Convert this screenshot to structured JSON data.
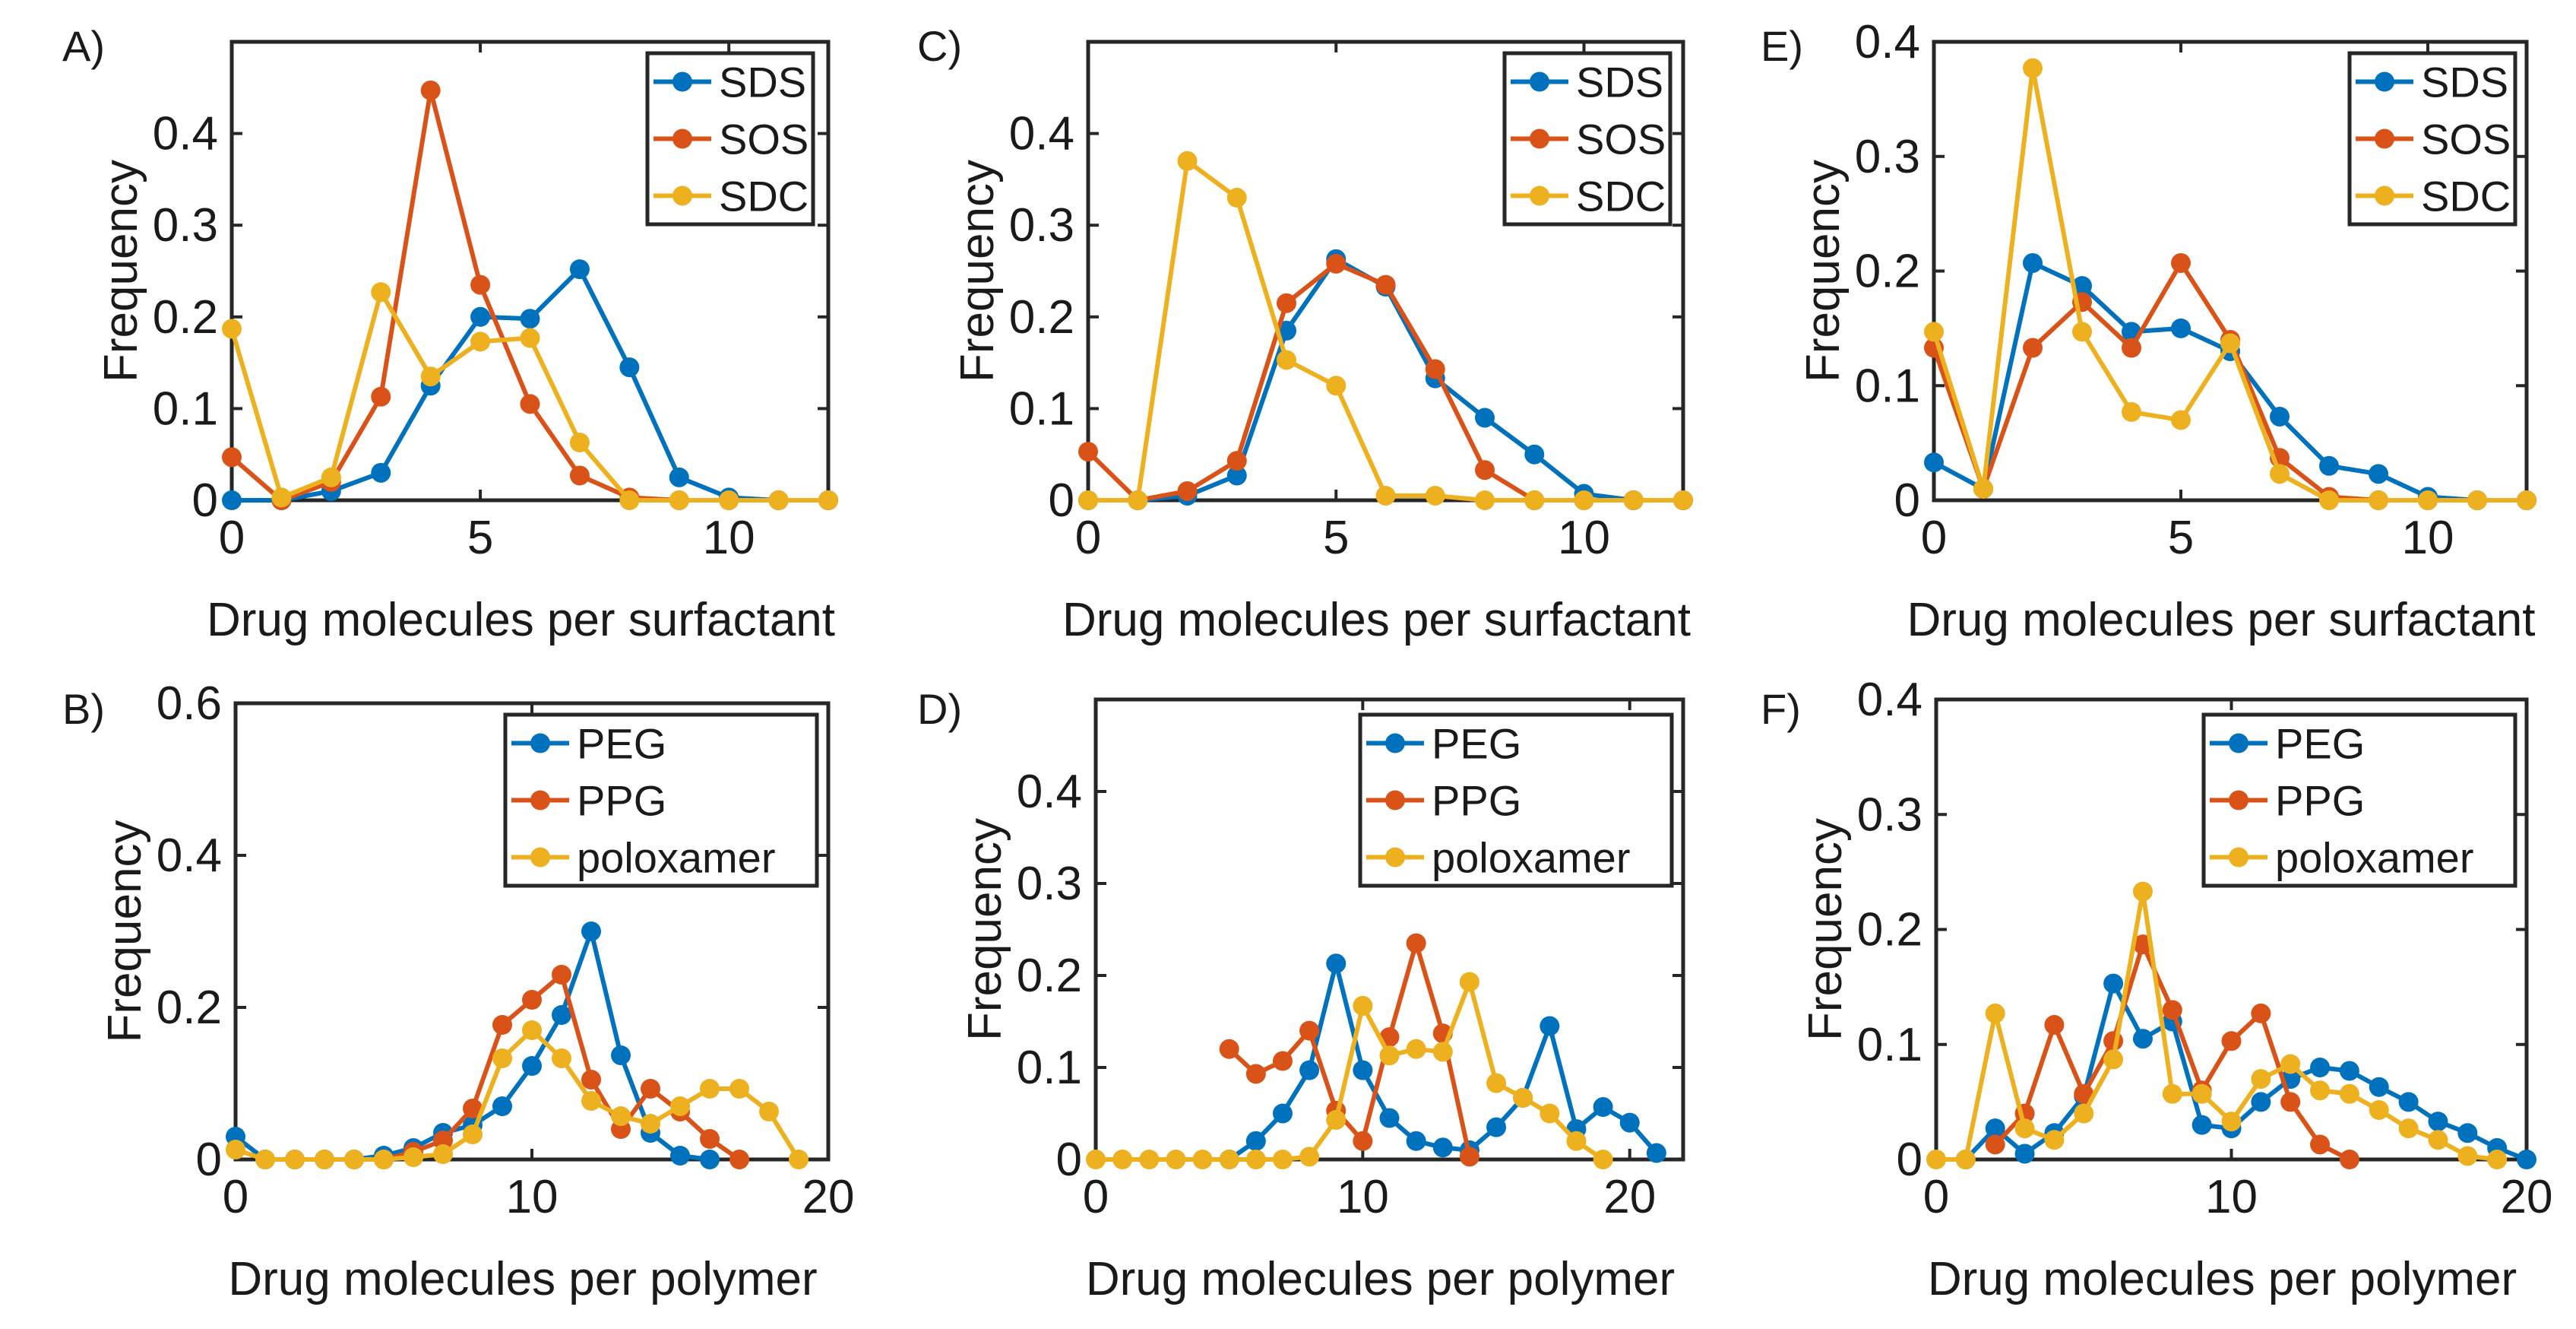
{
  "figure": {
    "colors": {
      "blue": "#0072BD",
      "orange": "#D95319",
      "yellow": "#EDB120"
    }
  },
  "chart_data": [
    {
      "panel": "A)",
      "type": "line",
      "xlabel": "Drug molecules per surfactant",
      "ylabel": "Frequency",
      "xlim": [
        0,
        12
      ],
      "ylim": [
        0,
        0.5
      ],
      "xticks": [
        0,
        5,
        10
      ],
      "yticks": [
        0,
        0.1,
        0.2,
        0.3,
        0.4
      ],
      "legend": "top-right",
      "x": [
        0,
        1,
        2,
        3,
        4,
        5,
        6,
        7,
        8,
        9,
        10,
        11,
        12
      ],
      "series": [
        {
          "name": "SDS",
          "color": "#0072BD",
          "values": [
            0,
            0,
            0.01,
            0.03,
            0.125,
            0.2,
            0.198,
            0.252,
            0.145,
            0.025,
            0.003,
            0,
            0
          ]
        },
        {
          "name": "SOS",
          "color": "#D95319",
          "values": [
            0.047,
            0,
            0.02,
            0.113,
            0.447,
            0.235,
            0.105,
            0.027,
            0.003,
            0,
            0,
            0,
            0
          ]
        },
        {
          "name": "SDC",
          "color": "#EDB120",
          "values": [
            0.187,
            0.003,
            0.025,
            0.227,
            0.135,
            0.173,
            0.177,
            0.063,
            0,
            0,
            0,
            0,
            0
          ]
        }
      ]
    },
    {
      "panel": "B)",
      "type": "line",
      "xlabel": "Drug molecules per polymer",
      "ylabel": "Frequency",
      "xlim": [
        0,
        20
      ],
      "ylim": [
        0,
        0.6
      ],
      "xticks": [
        0,
        10,
        20
      ],
      "yticks": [
        0,
        0.2,
        0.4,
        0.6
      ],
      "legend": "top-right",
      "x": [
        0,
        1,
        2,
        3,
        4,
        5,
        6,
        7,
        8,
        9,
        10,
        11,
        12,
        13,
        14,
        15,
        16,
        17,
        18,
        19
      ],
      "series": [
        {
          "name": "PEG",
          "color": "#0072BD",
          "values": [
            0.03,
            0,
            0,
            0,
            0,
            0.005,
            0.015,
            0.035,
            0.045,
            0.07,
            0.123,
            0.19,
            0.3,
            0.137,
            0.035,
            0.005,
            0,
            null,
            null,
            null
          ]
        },
        {
          "name": "PPG",
          "color": "#D95319",
          "values": [
            null,
            null,
            null,
            null,
            null,
            0,
            0.01,
            0.025,
            0.067,
            0.177,
            0.21,
            0.243,
            0.105,
            0.04,
            0.093,
            0.063,
            0.027,
            0,
            null,
            null
          ]
        },
        {
          "name": "poloxamer",
          "color": "#EDB120",
          "values": [
            0.013,
            0,
            0,
            0,
            0,
            0,
            0.003,
            0.007,
            0.033,
            0.133,
            0.17,
            0.133,
            0.077,
            0.057,
            0.047,
            0.07,
            0.093,
            0.093,
            0.063,
            0
          ]
        }
      ]
    },
    {
      "panel": "C)",
      "type": "line",
      "xlabel": "Drug molecules per surfactant",
      "ylabel": "Frequency",
      "xlim": [
        0,
        12
      ],
      "ylim": [
        0,
        0.5
      ],
      "xticks": [
        0,
        5,
        10
      ],
      "yticks": [
        0,
        0.1,
        0.2,
        0.3,
        0.4
      ],
      "legend": "top-right",
      "x": [
        0,
        1,
        2,
        3,
        4,
        5,
        6,
        7,
        8,
        9,
        10,
        11,
        12
      ],
      "series": [
        {
          "name": "SDS",
          "color": "#0072BD",
          "values": [
            0,
            0,
            0.005,
            0.027,
            0.185,
            0.263,
            0.233,
            0.133,
            0.09,
            0.05,
            0.007,
            0,
            0
          ]
        },
        {
          "name": "SOS",
          "color": "#D95319",
          "values": [
            0.053,
            0,
            0.01,
            0.043,
            0.215,
            0.258,
            0.235,
            0.143,
            0.033,
            0,
            0,
            0,
            0
          ]
        },
        {
          "name": "SDC",
          "color": "#EDB120",
          "values": [
            0,
            0,
            0.37,
            0.33,
            0.153,
            0.125,
            0.005,
            0.005,
            0,
            0,
            0,
            0,
            0
          ]
        }
      ]
    },
    {
      "panel": "D)",
      "type": "line",
      "xlabel": "Drug molecules per polymer",
      "ylabel": "Frequency",
      "xlim": [
        0,
        22
      ],
      "ylim": [
        0,
        0.5
      ],
      "xticks": [
        0,
        10,
        20
      ],
      "yticks": [
        0,
        0.1,
        0.2,
        0.3,
        0.4
      ],
      "legend": "top-right",
      "x": [
        0,
        1,
        2,
        3,
        4,
        5,
        6,
        7,
        8,
        9,
        10,
        11,
        12,
        13,
        14,
        15,
        16,
        17,
        18,
        19,
        20,
        21
      ],
      "series": [
        {
          "name": "PEG",
          "color": "#0072BD",
          "values": [
            null,
            null,
            null,
            null,
            null,
            0,
            0.02,
            0.05,
            0.097,
            0.213,
            0.097,
            0.045,
            0.02,
            0.013,
            0.01,
            0.035,
            0.067,
            0.145,
            0.033,
            0.057,
            0.04,
            0.007
          ]
        },
        {
          "name": "PPG",
          "color": "#D95319",
          "values": [
            null,
            null,
            null,
            null,
            null,
            0.12,
            0.093,
            0.107,
            0.14,
            0.053,
            0.02,
            0.133,
            0.235,
            0.137,
            0.003,
            null,
            null,
            null,
            null,
            null,
            null,
            null
          ]
        },
        {
          "name": "poloxamer",
          "color": "#EDB120",
          "values": [
            0,
            0,
            0,
            0,
            0,
            0,
            0,
            0,
            0.003,
            0.043,
            0.167,
            0.113,
            0.12,
            0.117,
            0.193,
            0.083,
            0.067,
            0.05,
            0.02,
            0,
            null,
            null
          ]
        }
      ]
    },
    {
      "panel": "E)",
      "type": "line",
      "xlabel": "Drug molecules per surfactant",
      "ylabel": "Frequency",
      "xlim": [
        0,
        12
      ],
      "ylim": [
        0,
        0.4
      ],
      "xticks": [
        0,
        5,
        10
      ],
      "yticks": [
        0,
        0.1,
        0.2,
        0.3,
        0.4
      ],
      "legend": "top-right",
      "x": [
        0,
        1,
        2,
        3,
        4,
        5,
        6,
        7,
        8,
        9,
        10,
        11,
        12
      ],
      "series": [
        {
          "name": "SDS",
          "color": "#0072BD",
          "values": [
            0.033,
            0.01,
            0.207,
            0.187,
            0.147,
            0.15,
            0.13,
            0.073,
            0.03,
            0.023,
            0.003,
            0,
            0
          ]
        },
        {
          "name": "SOS",
          "color": "#D95319",
          "values": [
            0.133,
            0.01,
            0.133,
            0.173,
            0.133,
            0.207,
            0.14,
            0.037,
            0.003,
            0,
            0,
            0,
            0
          ]
        },
        {
          "name": "SDC",
          "color": "#EDB120",
          "values": [
            0.147,
            0.01,
            0.377,
            0.147,
            0.077,
            0.07,
            0.137,
            0.023,
            0,
            0,
            0,
            0,
            0
          ]
        }
      ]
    },
    {
      "panel": "F)",
      "type": "line",
      "xlabel": "Drug molecules per polymer",
      "ylabel": "Frequency",
      "xlim": [
        0,
        20
      ],
      "ylim": [
        0,
        0.4
      ],
      "xticks": [
        0,
        10,
        20
      ],
      "yticks": [
        0,
        0.1,
        0.2,
        0.3,
        0.4
      ],
      "legend": "top-right",
      "x": [
        0,
        1,
        2,
        3,
        4,
        5,
        6,
        7,
        8,
        9,
        10,
        11,
        12,
        13,
        14,
        15,
        16,
        17,
        18,
        19,
        20
      ],
      "series": [
        {
          "name": "PEG",
          "color": "#0072BD",
          "values": [
            null,
            0,
            0.027,
            0.005,
            0.023,
            0.055,
            0.153,
            0.105,
            0.12,
            0.03,
            0.027,
            0.05,
            0.07,
            0.08,
            0.077,
            0.063,
            0.05,
            0.033,
            0.023,
            0.01,
            0
          ]
        },
        {
          "name": "PPG",
          "color": "#D95319",
          "values": [
            null,
            null,
            0.013,
            0.04,
            0.117,
            0.057,
            0.103,
            0.187,
            0.13,
            0.06,
            0.103,
            0.127,
            0.05,
            0.013,
            0,
            null,
            null,
            null,
            null,
            null,
            null
          ]
        },
        {
          "name": "poloxamer",
          "color": "#EDB120",
          "values": [
            0,
            0,
            0.127,
            0.027,
            0.017,
            0.04,
            0.087,
            0.233,
            0.057,
            0.057,
            0.033,
            0.07,
            0.083,
            0.06,
            0.057,
            0.043,
            0.027,
            0.017,
            0.003,
            0,
            null
          ]
        }
      ]
    }
  ]
}
